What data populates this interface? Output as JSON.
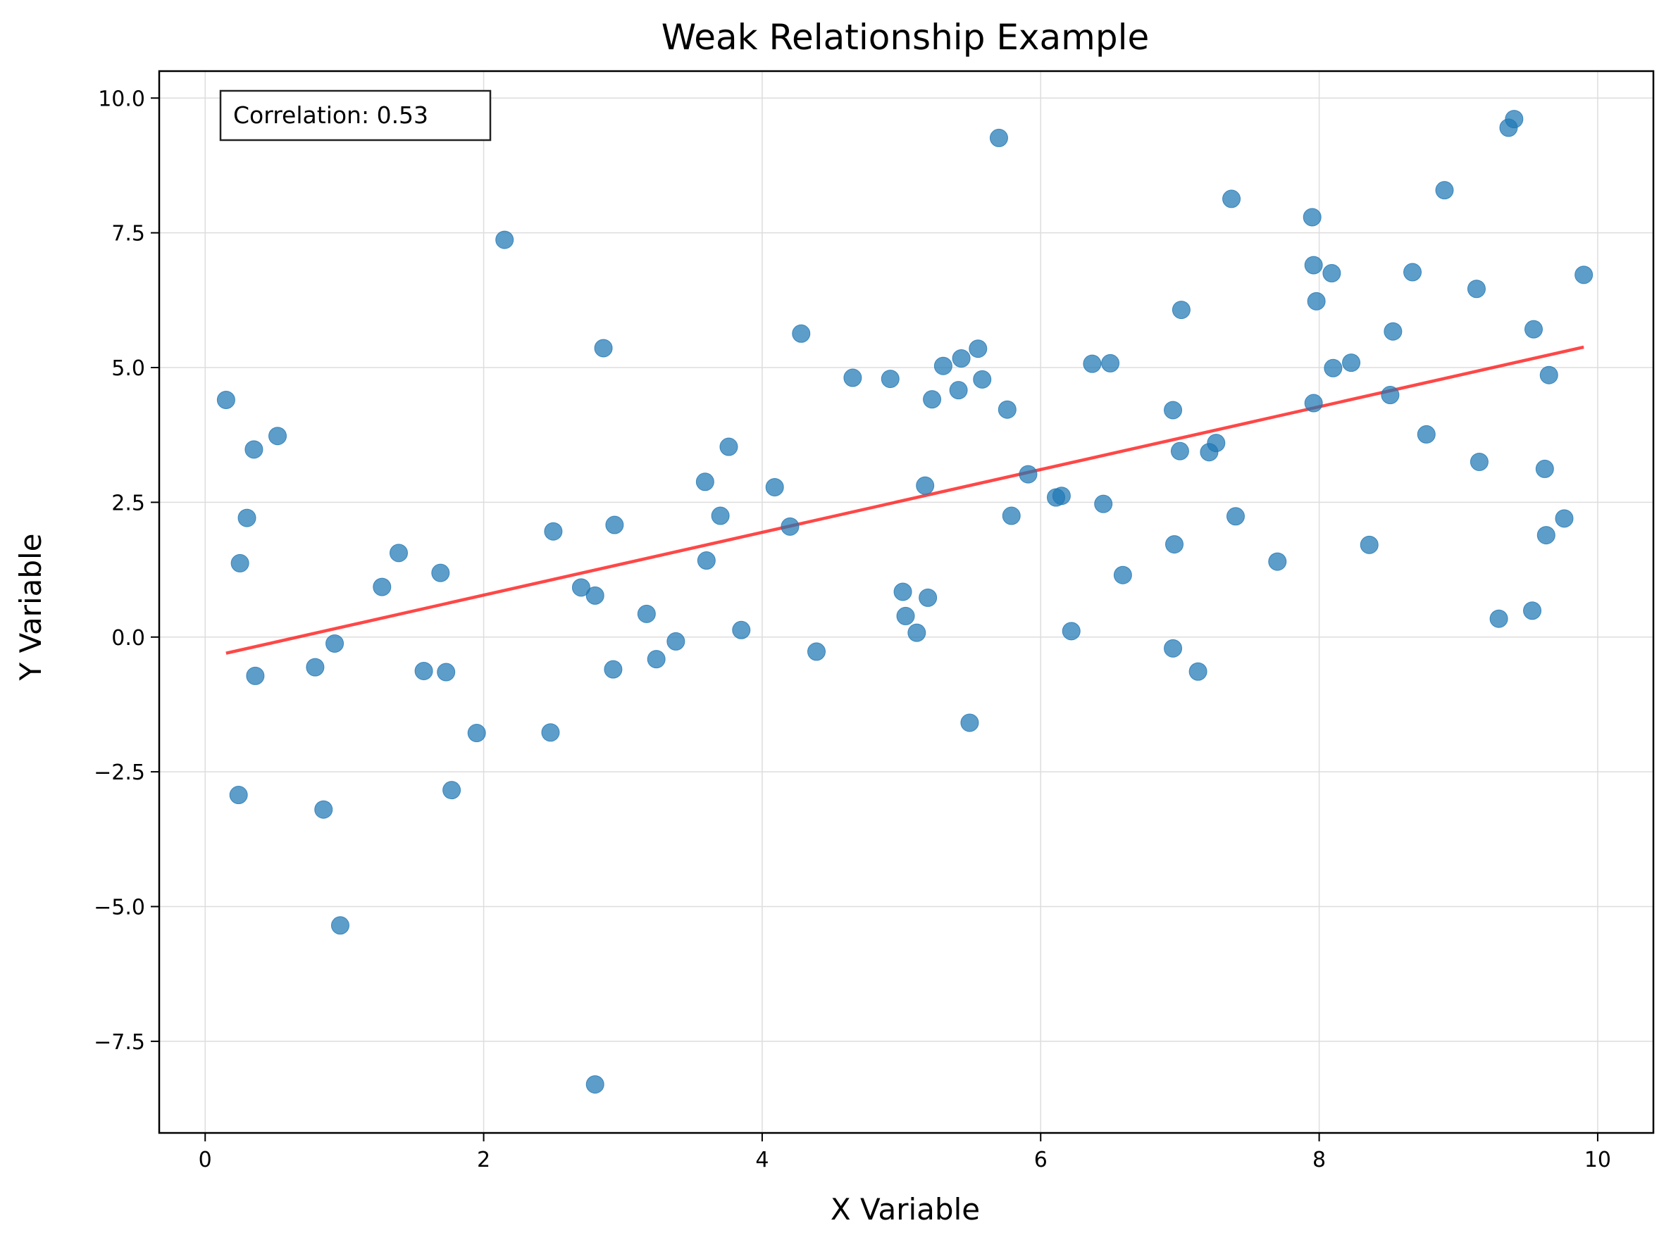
{
  "chart_data": {
    "type": "scatter",
    "title": "Weak Relationship Example",
    "xlabel": "X Variable",
    "ylabel": "Y Variable",
    "xlim": [
      -0.33,
      10.4
    ],
    "ylim": [
      -9.2,
      10.5
    ],
    "xticks": [
      0,
      2,
      4,
      6,
      8,
      10
    ],
    "yticks": [
      -7.5,
      -5.0,
      -2.5,
      0.0,
      2.5,
      5.0,
      7.5,
      10.0
    ],
    "xtick_labels": [
      "0",
      "2",
      "4",
      "6",
      "8",
      "10"
    ],
    "ytick_labels": [
      "−7.5",
      "−5.0",
      "−2.5",
      "0.0",
      "2.5",
      "5.0",
      "7.5",
      "10.0"
    ],
    "grid": true,
    "annotation": "Correlation: 0.53",
    "colors": {
      "points": "#1f77b4",
      "fit_line": "#ff0000",
      "grid": "#dddddd"
    },
    "fit_line": {
      "x": [
        0.15,
        9.9
      ],
      "y": [
        -0.3,
        5.38
      ]
    },
    "series": [
      {
        "x": [
          0.15,
          0.25,
          0.24,
          0.3,
          0.35,
          0.36,
          0.52,
          0.79,
          0.85,
          0.93,
          0.97,
          1.27,
          1.39,
          1.57,
          1.69,
          1.73,
          1.77,
          1.95,
          2.15,
          2.48,
          2.5,
          2.7,
          2.8,
          2.8,
          2.86,
          2.93,
          2.94,
          3.17,
          3.24,
          3.38,
          3.59,
          3.6,
          3.7,
          3.76,
          3.85,
          4.09,
          4.2,
          4.28,
          4.39,
          4.65,
          4.92,
          5.01,
          5.03,
          5.11,
          5.17,
          5.19,
          5.22,
          5.3,
          5.41,
          5.43,
          5.49,
          5.55,
          5.58,
          5.7,
          5.76,
          5.79,
          5.91,
          6.11,
          6.15,
          6.22,
          6.37,
          6.45,
          6.5,
          6.59,
          6.95,
          6.95,
          6.96,
          7.0,
          7.01,
          7.13,
          7.21,
          7.26,
          7.37,
          7.4,
          7.7,
          7.95,
          7.96,
          7.96,
          7.98,
          8.09,
          8.1,
          8.23,
          8.36,
          8.51,
          8.53,
          8.67,
          8.77,
          8.9,
          9.13,
          9.15,
          9.29,
          9.36,
          9.4,
          9.53,
          9.54,
          9.62,
          9.63,
          9.65,
          9.76,
          9.9
        ],
        "y": [
          4.4,
          1.37,
          -2.93,
          2.21,
          3.48,
          -0.72,
          3.73,
          -0.56,
          -3.2,
          -0.12,
          -5.35,
          0.93,
          1.56,
          -0.63,
          1.19,
          -0.65,
          -2.84,
          -1.78,
          7.37,
          -1.77,
          1.96,
          0.92,
          0.77,
          -8.3,
          5.36,
          -0.6,
          2.08,
          0.43,
          -0.41,
          -0.08,
          2.88,
          1.42,
          2.25,
          3.53,
          0.13,
          2.78,
          2.05,
          5.63,
          -0.27,
          4.81,
          4.79,
          0.84,
          0.39,
          0.08,
          2.81,
          0.73,
          4.41,
          5.03,
          4.58,
          5.17,
          -1.59,
          5.35,
          4.78,
          9.26,
          4.22,
          2.25,
          3.02,
          2.59,
          2.62,
          0.11,
          5.07,
          2.47,
          5.08,
          1.15,
          4.21,
          -0.21,
          1.72,
          3.45,
          6.07,
          -0.64,
          3.43,
          3.6,
          8.13,
          2.24,
          1.4,
          7.79,
          6.9,
          4.34,
          6.23,
          6.75,
          4.99,
          5.09,
          1.71,
          4.49,
          5.67,
          6.77,
          3.76,
          8.29,
          6.46,
          3.25,
          0.34,
          9.45,
          9.61,
          0.49,
          5.71,
          3.12,
          1.89,
          4.86,
          2.2,
          6.72
        ]
      }
    ]
  }
}
